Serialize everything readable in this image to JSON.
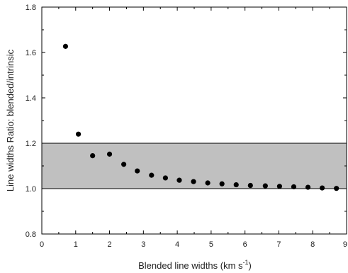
{
  "chart_data": {
    "type": "scatter",
    "xlabel": "Blended line widths (km s",
    "xlabel_sup": "-1",
    "xlabel_end": ")",
    "ylabel": "Line widths Ratio: blended/intrinsic",
    "xlim": [
      0,
      9
    ],
    "ylim": [
      0.8,
      1.8
    ],
    "xticks": [
      0,
      1,
      2,
      3,
      4,
      5,
      6,
      7,
      8,
      9
    ],
    "yticks": [
      0.8,
      1.0,
      1.2,
      1.4,
      1.6,
      1.8
    ],
    "ytick_labels": [
      "0.8",
      "1.0",
      "1.2",
      "1.4",
      "1.6",
      "1.8"
    ],
    "shaded_band": {
      "y0": 1.0,
      "y1": 1.2,
      "color": "#c0c0c0"
    },
    "marker_color": "#000000",
    "points": [
      {
        "x": 0.7,
        "y": 1.627
      },
      {
        "x": 1.08,
        "y": 1.24
      },
      {
        "x": 1.5,
        "y": 1.145
      },
      {
        "x": 2.0,
        "y": 1.152
      },
      {
        "x": 2.42,
        "y": 1.107
      },
      {
        "x": 2.82,
        "y": 1.078
      },
      {
        "x": 3.24,
        "y": 1.059
      },
      {
        "x": 3.65,
        "y": 1.047
      },
      {
        "x": 4.06,
        "y": 1.037
      },
      {
        "x": 4.48,
        "y": 1.031
      },
      {
        "x": 4.9,
        "y": 1.025
      },
      {
        "x": 5.32,
        "y": 1.021
      },
      {
        "x": 5.74,
        "y": 1.017
      },
      {
        "x": 6.16,
        "y": 1.014
      },
      {
        "x": 6.6,
        "y": 1.012
      },
      {
        "x": 7.02,
        "y": 1.01
      },
      {
        "x": 7.44,
        "y": 1.008
      },
      {
        "x": 7.86,
        "y": 1.006
      },
      {
        "x": 8.28,
        "y": 1.003
      },
      {
        "x": 8.7,
        "y": 1.001
      }
    ]
  }
}
